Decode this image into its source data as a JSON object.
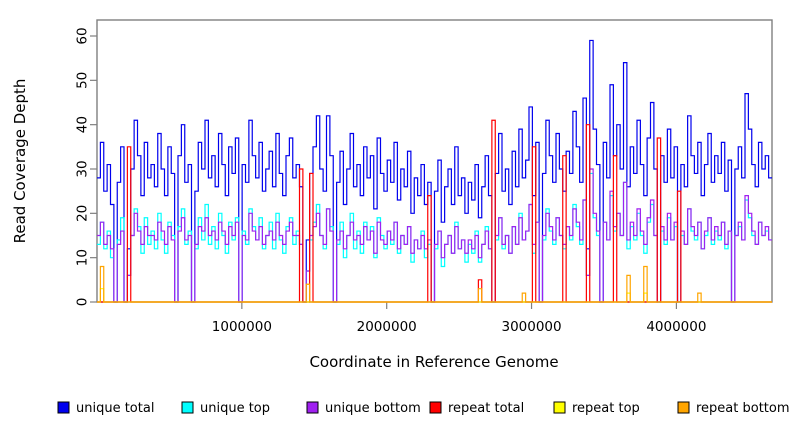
{
  "figure": {
    "background": "#ffffff"
  },
  "axes": {
    "x": {
      "label": "Coordinate in Reference Genome",
      "tick_labels": [
        "1000000",
        "2000000",
        "3000000",
        "4000000"
      ],
      "tick_values": [
        1000000,
        2000000,
        3000000,
        4000000
      ]
    },
    "y": {
      "label": "Read Coverage Depth",
      "tick_labels": [
        "0",
        "10",
        "20",
        "30",
        "40",
        "50",
        "60"
      ],
      "tick_values": [
        0,
        10,
        20,
        30,
        40,
        50,
        60
      ]
    }
  },
  "legend": {
    "items": [
      {
        "label": "unique total",
        "color": "#0000EE"
      },
      {
        "label": "unique top",
        "color": "#00FFFF"
      },
      {
        "label": "unique bottom",
        "color": "#A020F0"
      },
      {
        "label": "repeat total",
        "color": "#FF0000"
      },
      {
        "label": "repeat top",
        "color": "#FFFF00"
      },
      {
        "label": "repeat bottom",
        "color": "#FFA500"
      }
    ]
  },
  "chart_data": {
    "type": "line",
    "line_style": "step",
    "title": "",
    "xlabel": "Coordinate in Reference Genome",
    "ylabel": "Read Coverage Depth",
    "xlim": [
      0,
      4660000
    ],
    "ylim": [
      0,
      63.6
    ],
    "grid": false,
    "legend_position": "bottom",
    "x_start": 0,
    "x_step": 23300,
    "n_bins": 200,
    "series": [
      {
        "name": "unique total",
        "color": "#0000EE",
        "values": [
          28,
          36,
          25,
          31,
          22,
          0,
          27,
          35,
          0,
          12,
          30,
          41,
          33,
          24,
          36,
          28,
          31,
          26,
          38,
          30,
          24,
          35,
          29,
          0,
          33,
          40,
          27,
          31,
          0,
          25,
          36,
          30,
          41,
          28,
          33,
          26,
          38,
          31,
          24,
          35,
          29,
          37,
          0,
          31,
          27,
          41,
          33,
          28,
          36,
          25,
          30,
          34,
          26,
          38,
          29,
          24,
          33,
          37,
          28,
          31,
          26,
          0,
          14,
          29,
          35,
          42,
          30,
          25,
          42,
          33,
          0,
          27,
          34,
          22,
          30,
          38,
          26,
          31,
          24,
          35,
          28,
          33,
          21,
          37,
          29,
          25,
          32,
          27,
          36,
          23,
          30,
          26,
          34,
          20,
          28,
          24,
          31,
          22,
          27,
          0,
          25,
          32,
          18,
          26,
          30,
          22,
          35,
          24,
          28,
          20,
          27,
          23,
          31,
          19,
          26,
          33,
          24,
          0,
          29,
          38,
          25,
          30,
          22,
          34,
          26,
          39,
          28,
          32,
          44,
          24,
          36,
          0,
          29,
          41,
          33,
          27,
          38,
          30,
          25,
          34,
          29,
          43,
          35,
          27,
          46,
          12,
          59,
          39,
          31,
          0,
          36,
          28,
          49,
          33,
          40,
          30,
          54,
          26,
          35,
          29,
          41,
          31,
          24,
          37,
          45,
          30,
          0,
          33,
          27,
          39,
          28,
          35,
          0,
          31,
          26,
          42,
          33,
          29,
          36,
          24,
          31,
          38,
          27,
          33,
          29,
          36,
          25,
          32,
          0,
          30,
          35,
          28,
          47,
          39,
          31,
          26,
          36,
          30,
          33,
          28
        ]
      },
      {
        "name": "unique top",
        "color": "#00FFFF",
        "values": [
          13,
          18,
          12,
          16,
          10,
          0,
          14,
          19,
          0,
          6,
          15,
          21,
          17,
          11,
          19,
          13,
          16,
          12,
          20,
          14,
          11,
          18,
          15,
          0,
          17,
          21,
          13,
          16,
          0,
          12,
          19,
          14,
          22,
          13,
          17,
          12,
          20,
          15,
          11,
          18,
          14,
          19,
          0,
          16,
          13,
          21,
          17,
          14,
          19,
          12,
          15,
          18,
          12,
          20,
          14,
          11,
          17,
          19,
          13,
          16,
          13,
          0,
          7,
          14,
          18,
          22,
          15,
          12,
          21,
          17,
          0,
          13,
          18,
          10,
          15,
          20,
          12,
          16,
          11,
          18,
          14,
          17,
          10,
          19,
          15,
          12,
          16,
          13,
          18,
          11,
          15,
          13,
          17,
          9,
          14,
          12,
          16,
          10,
          13,
          0,
          12,
          16,
          8,
          13,
          15,
          11,
          18,
          12,
          14,
          9,
          13,
          11,
          16,
          9,
          13,
          17,
          12,
          0,
          14,
          19,
          12,
          15,
          11,
          17,
          13,
          20,
          14,
          16,
          22,
          11,
          18,
          0,
          14,
          21,
          16,
          13,
          19,
          15,
          12,
          17,
          14,
          22,
          17,
          13,
          23,
          6,
          29,
          19,
          15,
          0,
          18,
          14,
          24,
          16,
          20,
          15,
          27,
          12,
          17,
          14,
          20,
          15,
          11,
          18,
          22,
          15,
          0,
          16,
          13,
          19,
          14,
          17,
          0,
          15,
          13,
          21,
          16,
          14,
          18,
          12,
          15,
          19,
          13,
          16,
          14,
          18,
          12,
          16,
          0,
          15,
          17,
          14,
          23,
          19,
          15,
          13,
          18,
          15,
          16,
          14
        ]
      },
      {
        "name": "unique bottom",
        "color": "#A020F0",
        "values": [
          15,
          18,
          13,
          15,
          12,
          0,
          13,
          16,
          0,
          6,
          15,
          20,
          16,
          13,
          17,
          15,
          15,
          14,
          18,
          16,
          13,
          17,
          14,
          0,
          16,
          19,
          14,
          15,
          0,
          13,
          17,
          16,
          19,
          15,
          16,
          14,
          18,
          16,
          13,
          17,
          15,
          18,
          0,
          15,
          14,
          20,
          16,
          14,
          17,
          13,
          15,
          16,
          14,
          18,
          15,
          13,
          16,
          18,
          15,
          15,
          13,
          0,
          7,
          15,
          17,
          20,
          15,
          13,
          21,
          16,
          0,
          14,
          16,
          12,
          15,
          18,
          14,
          15,
          13,
          17,
          14,
          16,
          11,
          18,
          14,
          13,
          16,
          14,
          18,
          12,
          15,
          13,
          17,
          11,
          14,
          12,
          15,
          12,
          14,
          0,
          13,
          16,
          10,
          13,
          15,
          11,
          17,
          12,
          14,
          11,
          14,
          12,
          15,
          10,
          13,
          16,
          12,
          0,
          15,
          19,
          13,
          15,
          11,
          17,
          13,
          19,
          14,
          16,
          22,
          13,
          18,
          0,
          15,
          20,
          17,
          14,
          19,
          15,
          13,
          17,
          15,
          21,
          18,
          14,
          23,
          6,
          30,
          20,
          16,
          0,
          18,
          14,
          25,
          17,
          20,
          15,
          27,
          14,
          18,
          15,
          21,
          16,
          13,
          19,
          23,
          15,
          0,
          17,
          14,
          20,
          14,
          18,
          0,
          16,
          13,
          21,
          17,
          15,
          18,
          12,
          16,
          19,
          14,
          17,
          15,
          18,
          13,
          16,
          0,
          15,
          18,
          14,
          24,
          20,
          16,
          13,
          18,
          15,
          17,
          14
        ]
      },
      {
        "name": "repeat total",
        "color": "#FF0000",
        "base": 0,
        "spikes": [
          [
            9,
            35
          ],
          [
            60,
            30
          ],
          [
            63,
            29
          ],
          [
            98,
            24
          ],
          [
            113,
            5
          ],
          [
            117,
            41
          ],
          [
            129,
            35
          ],
          [
            138,
            33
          ],
          [
            145,
            40
          ],
          [
            153,
            33
          ],
          [
            166,
            37
          ],
          [
            172,
            25
          ]
        ]
      },
      {
        "name": "repeat top",
        "color": "#FFFF00",
        "base": 0,
        "spikes": [
          [
            1,
            3
          ],
          [
            157,
            2
          ],
          [
            162,
            2
          ]
        ]
      },
      {
        "name": "repeat bottom",
        "color": "#FFA500",
        "base": 0,
        "spikes": [
          [
            1,
            8
          ],
          [
            62,
            4
          ],
          [
            113,
            3
          ],
          [
            126,
            2
          ],
          [
            157,
            6
          ],
          [
            162,
            8
          ],
          [
            178,
            2
          ]
        ]
      }
    ]
  }
}
